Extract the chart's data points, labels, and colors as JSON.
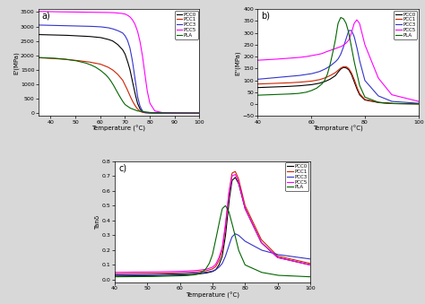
{
  "bg_color": "#d8d8d8",
  "series_labels": [
    "PCC0",
    "PCC1",
    "PCC3",
    "PCC5",
    "PLA"
  ],
  "series_colors": [
    "black",
    "#cc2200",
    "#3333cc",
    "magenta",
    "#006600"
  ],
  "panel_labels": [
    "a)",
    "b)",
    "c)"
  ],
  "subplot_a": {
    "ylabel": "E'(MPa)",
    "xlabel": "Temperature (°C)",
    "xlim": [
      35,
      100
    ],
    "ylim": [
      -100,
      3600
    ],
    "yticks": [
      0,
      500,
      1000,
      1500,
      2000,
      2500,
      3000,
      3500
    ],
    "xticks": [
      40,
      50,
      60,
      70,
      80,
      90,
      100
    ],
    "curves": {
      "PCC0": {
        "x": [
          35,
          40,
          45,
          50,
          55,
          60,
          63,
          65,
          67,
          69,
          70,
          71,
          72,
          73,
          74,
          75,
          76,
          77,
          78,
          80,
          85,
          90,
          100
        ],
        "y": [
          2720,
          2710,
          2700,
          2680,
          2660,
          2620,
          2560,
          2500,
          2380,
          2200,
          2050,
          1800,
          1500,
          1100,
          700,
          350,
          150,
          60,
          25,
          12,
          6,
          4,
          3
        ]
      },
      "PCC1": {
        "x": [
          35,
          40,
          45,
          50,
          55,
          60,
          63,
          65,
          67,
          69,
          70,
          71,
          72,
          73,
          74,
          75,
          76,
          77,
          78,
          80,
          85,
          90,
          100
        ],
        "y": [
          1920,
          1900,
          1870,
          1830,
          1780,
          1700,
          1600,
          1500,
          1350,
          1150,
          980,
          800,
          600,
          420,
          270,
          150,
          70,
          30,
          15,
          8,
          4,
          3,
          2
        ]
      },
      "PCC3": {
        "x": [
          35,
          40,
          45,
          50,
          55,
          60,
          63,
          65,
          67,
          69,
          70,
          71,
          72,
          73,
          74,
          75,
          76,
          77,
          78,
          80,
          85,
          90,
          100
        ],
        "y": [
          3050,
          3040,
          3030,
          3020,
          3010,
          2990,
          2960,
          2920,
          2860,
          2780,
          2680,
          2520,
          2250,
          1800,
          1200,
          600,
          250,
          80,
          25,
          10,
          5,
          3,
          2
        ]
      },
      "PCC5": {
        "x": [
          35,
          40,
          45,
          50,
          55,
          60,
          65,
          68,
          70,
          71,
          72,
          73,
          74,
          75,
          76,
          77,
          78,
          79,
          80,
          82,
          85,
          90,
          100
        ],
        "y": [
          3520,
          3510,
          3505,
          3500,
          3496,
          3490,
          3480,
          3460,
          3430,
          3390,
          3330,
          3230,
          3080,
          2850,
          2500,
          2000,
          1350,
          750,
          350,
          80,
          20,
          8,
          4
        ]
      },
      "PLA": {
        "x": [
          35,
          40,
          45,
          50,
          54,
          56,
          58,
          60,
          62,
          63,
          64,
          65,
          66,
          67,
          68,
          69,
          70,
          72,
          75,
          80,
          90,
          100
        ],
        "y": [
          1930,
          1910,
          1880,
          1820,
          1740,
          1680,
          1600,
          1490,
          1350,
          1260,
          1150,
          1020,
          870,
          710,
          560,
          420,
          300,
          180,
          80,
          25,
          8,
          3
        ]
      }
    }
  },
  "subplot_b": {
    "ylabel": "E''(MPa)",
    "xlabel": "Temprature (°C)",
    "xlim": [
      40,
      100
    ],
    "ylim": [
      -50,
      400
    ],
    "yticks": [
      -50,
      0,
      50,
      100,
      150,
      200,
      250,
      300,
      350,
      400
    ],
    "xticks": [
      40,
      60,
      80,
      100
    ],
    "curves": {
      "PCC0": {
        "x": [
          40,
          45,
          50,
          55,
          60,
          63,
          65,
          67,
          69,
          70,
          71,
          72,
          73,
          74,
          75,
          76,
          77,
          78,
          80,
          85,
          90,
          100
        ],
        "y": [
          70,
          72,
          74,
          77,
          82,
          88,
          95,
          105,
          120,
          135,
          148,
          155,
          153,
          145,
          125,
          95,
          65,
          40,
          18,
          7,
          3,
          2
        ]
      },
      "PCC1": {
        "x": [
          40,
          45,
          50,
          55,
          60,
          63,
          65,
          67,
          69,
          70,
          71,
          72,
          73,
          74,
          75,
          76,
          77,
          78,
          80,
          85,
          90,
          100
        ],
        "y": [
          85,
          87,
          89,
          92,
          97,
          103,
          110,
          120,
          133,
          143,
          152,
          158,
          158,
          150,
          132,
          105,
          72,
          45,
          20,
          8,
          3,
          2
        ]
      },
      "PCC3": {
        "x": [
          40,
          45,
          50,
          55,
          60,
          63,
          65,
          67,
          69,
          70,
          71,
          72,
          73,
          74,
          75,
          76,
          77,
          78,
          80,
          85,
          90,
          100
        ],
        "y": [
          105,
          110,
          115,
          120,
          128,
          137,
          147,
          160,
          178,
          190,
          210,
          240,
          275,
          310,
          310,
          285,
          240,
          185,
          100,
          35,
          12,
          4
        ]
      },
      "PCC5": {
        "x": [
          40,
          45,
          50,
          55,
          58,
          60,
          62,
          64,
          65,
          66,
          67,
          68,
          69,
          70,
          71,
          72,
          73,
          74,
          75,
          76,
          77,
          78,
          80,
          85,
          90,
          100
        ],
        "y": [
          185,
          188,
          192,
          196,
          200,
          204,
          208,
          213,
          218,
          222,
          226,
          230,
          234,
          238,
          242,
          248,
          257,
          270,
          300,
          340,
          355,
          340,
          250,
          110,
          40,
          12
        ]
      },
      "PLA": {
        "x": [
          40,
          45,
          50,
          55,
          58,
          60,
          62,
          64,
          65,
          66,
          67,
          68,
          69,
          70,
          71,
          72,
          73,
          74,
          75,
          76,
          78,
          80,
          85,
          90,
          100
        ],
        "y": [
          38,
          40,
          42,
          45,
          50,
          57,
          67,
          85,
          100,
          125,
          165,
          215,
          270,
          340,
          365,
          360,
          340,
          300,
          240,
          180,
          80,
          30,
          8,
          3,
          1
        ]
      }
    }
  },
  "subplot_c": {
    "ylabel": "Tanδ",
    "xlabel": "Temperature (°C)",
    "xlim": [
      40,
      100
    ],
    "ylim": [
      -0.02,
      0.8
    ],
    "yticks": [
      0.0,
      0.1,
      0.2,
      0.3,
      0.4,
      0.5,
      0.6,
      0.7,
      0.8
    ],
    "xticks": [
      40,
      50,
      60,
      70,
      80,
      90,
      100
    ],
    "curves": {
      "PCC0": {
        "x": [
          40,
          50,
          60,
          65,
          68,
          70,
          71,
          72,
          73,
          74,
          75,
          76,
          77,
          78,
          80,
          85,
          90,
          100
        ],
        "y": [
          0.025,
          0.027,
          0.032,
          0.037,
          0.045,
          0.055,
          0.068,
          0.1,
          0.16,
          0.3,
          0.52,
          0.67,
          0.69,
          0.65,
          0.48,
          0.25,
          0.15,
          0.1
        ]
      },
      "PCC1": {
        "x": [
          40,
          50,
          60,
          65,
          68,
          70,
          71,
          72,
          73,
          74,
          75,
          76,
          77,
          78,
          80,
          85,
          90,
          100
        ],
        "y": [
          0.04,
          0.042,
          0.046,
          0.052,
          0.06,
          0.073,
          0.09,
          0.13,
          0.2,
          0.36,
          0.58,
          0.72,
          0.73,
          0.68,
          0.5,
          0.27,
          0.16,
          0.11
        ]
      },
      "PCC3": {
        "x": [
          40,
          50,
          60,
          65,
          68,
          70,
          71,
          72,
          73,
          74,
          75,
          76,
          77,
          78,
          80,
          85,
          90,
          100
        ],
        "y": [
          0.034,
          0.035,
          0.04,
          0.044,
          0.05,
          0.058,
          0.068,
          0.085,
          0.11,
          0.16,
          0.23,
          0.29,
          0.31,
          0.3,
          0.26,
          0.2,
          0.17,
          0.14
        ]
      },
      "PCC5": {
        "x": [
          40,
          50,
          60,
          65,
          68,
          70,
          71,
          72,
          73,
          74,
          75,
          76,
          77,
          78,
          80,
          85,
          90,
          100
        ],
        "y": [
          0.05,
          0.052,
          0.056,
          0.062,
          0.07,
          0.085,
          0.105,
          0.15,
          0.22,
          0.38,
          0.58,
          0.7,
          0.71,
          0.66,
          0.48,
          0.25,
          0.15,
          0.1
        ]
      },
      "PLA": {
        "x": [
          40,
          50,
          58,
          62,
          64,
          65,
          66,
          67,
          68,
          69,
          70,
          71,
          72,
          73,
          74,
          75,
          76,
          78,
          80,
          85,
          90,
          100
        ],
        "y": [
          0.02,
          0.021,
          0.025,
          0.028,
          0.032,
          0.036,
          0.043,
          0.055,
          0.075,
          0.11,
          0.17,
          0.27,
          0.38,
          0.48,
          0.5,
          0.46,
          0.38,
          0.2,
          0.1,
          0.05,
          0.03,
          0.02
        ]
      }
    }
  }
}
